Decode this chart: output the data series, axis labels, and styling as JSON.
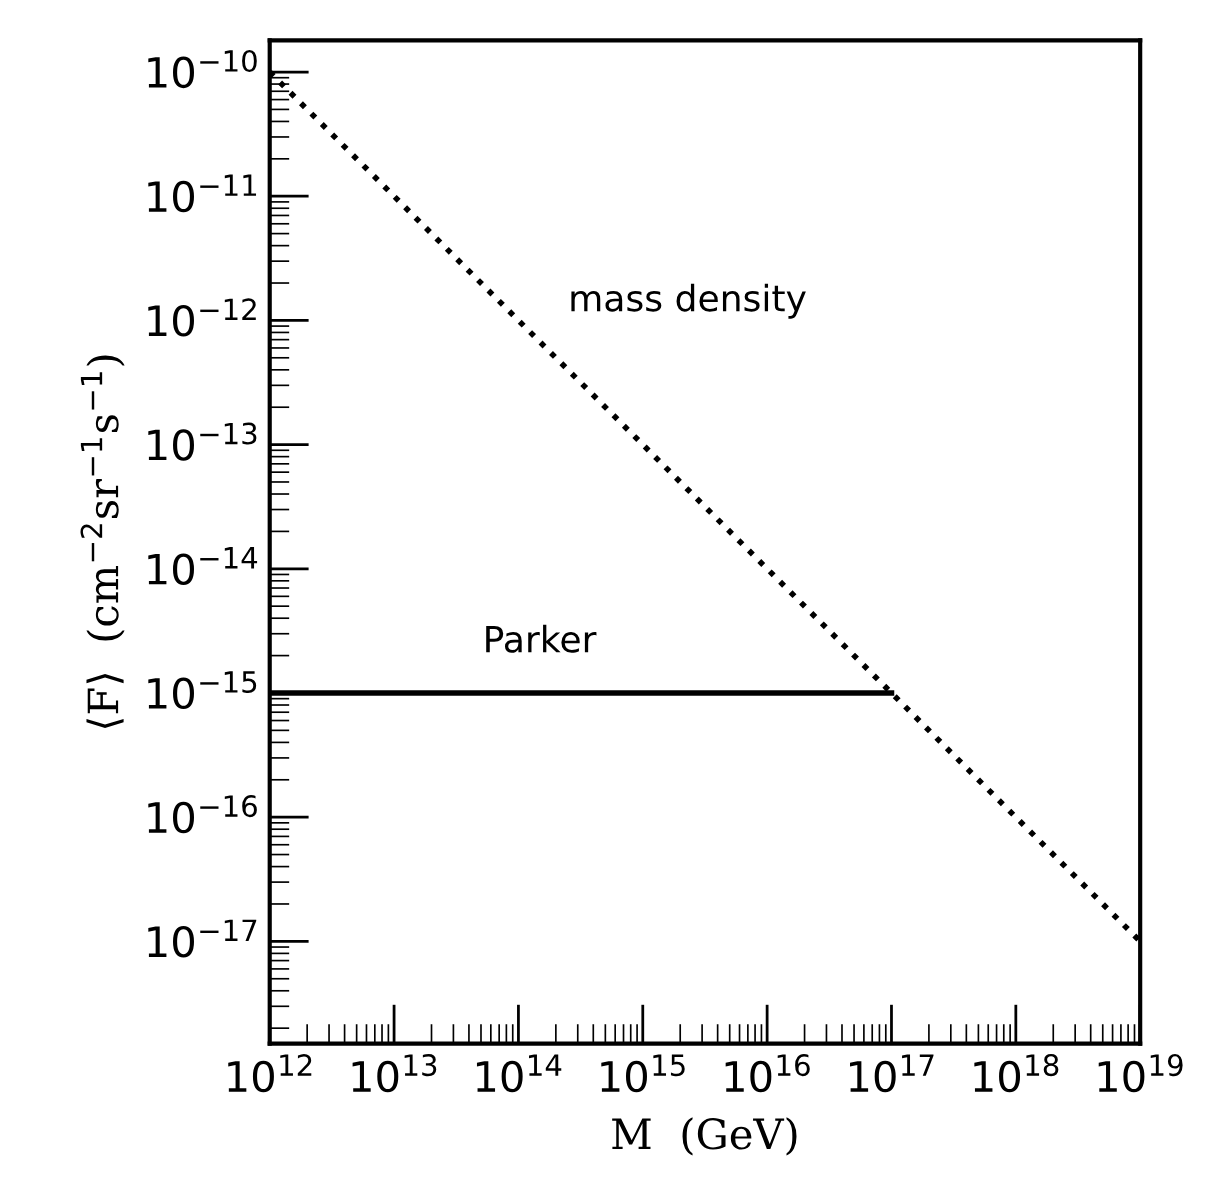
{
  "chart_data": {
    "type": "line",
    "xlabel": "M  (GeV)",
    "ylabel": "⟨F⟩  (cm$^{−2}$sr$^{−1}$s$^{−1}$)",
    "log": "xy",
    "grid": false,
    "legend": false,
    "xlim": [
      1000000000000.0,
      1e+19
    ],
    "ylim": [
      1.5e-18,
      1.8e-10
    ],
    "xticks": [
      {
        "value": 1000000000000.0,
        "label": "10$^{12}$"
      },
      {
        "value": 10000000000000.0,
        "label": "10$^{13}$"
      },
      {
        "value": 100000000000000.0,
        "label": "10$^{14}$"
      },
      {
        "value": 1000000000000000.0,
        "label": "10$^{15}$"
      },
      {
        "value": 1e+16,
        "label": "10$^{16}$"
      },
      {
        "value": 1e+17,
        "label": "10$^{17}$"
      },
      {
        "value": 1e+18,
        "label": "10$^{18}$"
      },
      {
        "value": 1e+19,
        "label": "10$^{19}$"
      }
    ],
    "yticks": [
      {
        "value": 1e-17,
        "label": "10$^{−17}$"
      },
      {
        "value": 1e-16,
        "label": "10$^{−16}$"
      },
      {
        "value": 1e-15,
        "label": "10$^{−15}$"
      },
      {
        "value": 1e-14,
        "label": "10$^{−14}$"
      },
      {
        "value": 1e-13,
        "label": "10$^{−13}$"
      },
      {
        "value": 1e-12,
        "label": "10$^{−12}$"
      },
      {
        "value": 1e-11,
        "label": "10$^{−11}$"
      },
      {
        "value": 1e-10,
        "label": "10$^{−10}$"
      }
    ],
    "series": [
      {
        "name": "mass density",
        "color": "#000000",
        "line_style": "dotted",
        "x": [
          1000000000000.0,
          1e+19
        ],
        "values": [
          1e-10,
          1e-17
        ]
      },
      {
        "name": "Parker",
        "color": "#000000",
        "line_style": "solid",
        "x": [
          1000000000000.0,
          1e+17
        ],
        "values": [
          1e-15,
          1e-15
        ]
      }
    ]
  }
}
